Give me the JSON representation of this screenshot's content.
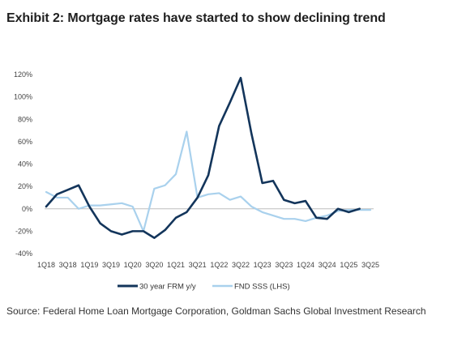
{
  "title": "Exhibit 2: Mortgage rates have started to show declining trend",
  "source": "Source: Federal Home Loan Mortgage Corporation, Goldman Sachs Global Investment Research",
  "chart_data": {
    "type": "line",
    "x": [
      "1Q18",
      "2Q18",
      "3Q18",
      "4Q18",
      "1Q19",
      "2Q19",
      "3Q19",
      "4Q19",
      "1Q20",
      "2Q20",
      "3Q20",
      "4Q20",
      "1Q21",
      "2Q21",
      "3Q21",
      "4Q21",
      "1Q22",
      "2Q22",
      "3Q22",
      "4Q22",
      "1Q23",
      "2Q23",
      "3Q23",
      "4Q23",
      "1Q24",
      "2Q24",
      "3Q24",
      "4Q24",
      "1Q25",
      "2Q25",
      "3Q25"
    ],
    "x_tick_labels": [
      "1Q18",
      "3Q18",
      "1Q19",
      "3Q19",
      "1Q20",
      "3Q20",
      "1Q21",
      "3Q21",
      "1Q22",
      "3Q22",
      "1Q23",
      "3Q23",
      "1Q24",
      "3Q24",
      "1Q25",
      "3Q25"
    ],
    "ylim": [
      -40,
      120
    ],
    "y_ticks": [
      -40,
      -20,
      0,
      20,
      40,
      60,
      80,
      100,
      120
    ],
    "y_tick_labels": [
      "-40%",
      "-20%",
      "0%",
      "20%",
      "40%",
      "60%",
      "80%",
      "100%",
      "120%"
    ],
    "grid": false,
    "legend_position": "bottom",
    "series": [
      {
        "name": "30 year FRM y/y",
        "color": "#13355b",
        "values": [
          2,
          13,
          17,
          21,
          2,
          -13,
          -20,
          -23,
          -20,
          -20,
          -26,
          -19,
          -8,
          -3,
          10,
          30,
          74,
          95,
          117,
          67,
          23,
          25,
          8,
          5,
          7,
          -8,
          -9,
          0,
          -3,
          0,
          null
        ]
      },
      {
        "name": "FND SSS (LHS)",
        "color": "#a9d1ed",
        "values": [
          15,
          10,
          10,
          0,
          3,
          3,
          4,
          5,
          2,
          -20,
          18,
          21,
          31,
          69,
          10,
          13,
          14,
          8,
          11,
          2,
          -3,
          -6,
          -9,
          -9,
          -11,
          -8,
          -6,
          -2,
          -1,
          -1,
          -1
        ]
      }
    ]
  }
}
